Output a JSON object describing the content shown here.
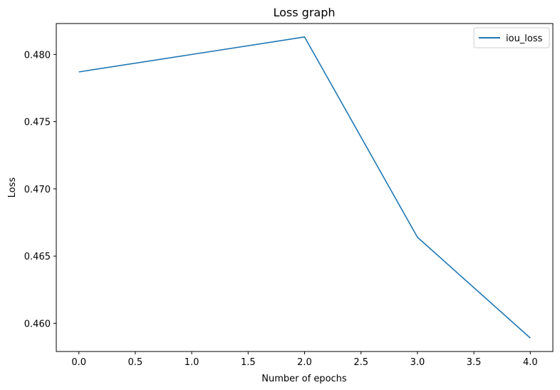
{
  "chart_data": {
    "type": "line",
    "title": "Loss graph",
    "xlabel": "Number of epochs",
    "ylabel": "Loss",
    "x": [
      0,
      1,
      2,
      3,
      4
    ],
    "series": [
      {
        "name": "iou_loss",
        "values": [
          0.4787,
          0.48,
          0.4813,
          0.4664,
          0.4589
        ],
        "color": "#1f77b4"
      }
    ],
    "xlim": [
      -0.2,
      4.2
    ],
    "ylim": [
      0.4579,
      0.4823
    ],
    "xticks": [
      "0.0",
      "0.5",
      "1.0",
      "1.5",
      "2.0",
      "2.5",
      "3.0",
      "3.5",
      "4.0"
    ],
    "yticks": [
      "0.460",
      "0.465",
      "0.470",
      "0.475",
      "0.480"
    ],
    "grid": false,
    "legend_position": "top-right"
  }
}
